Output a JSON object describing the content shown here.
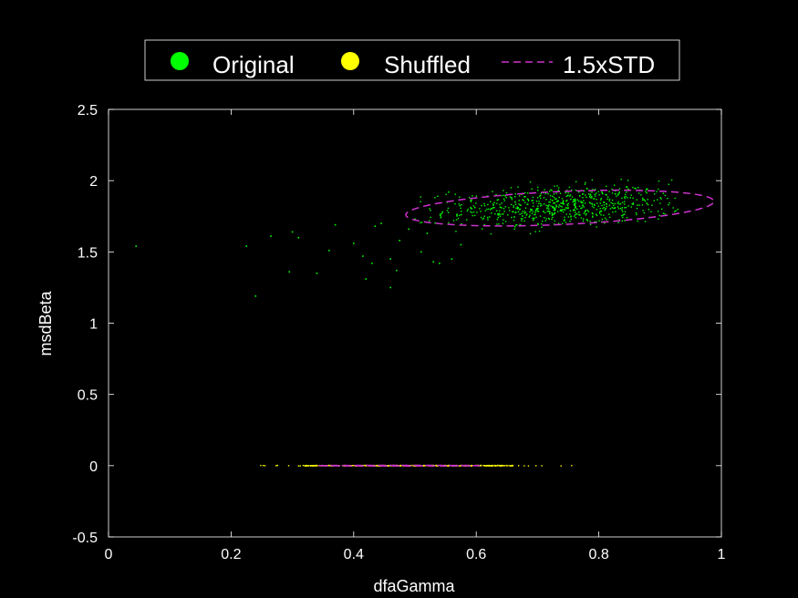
{
  "chart_data": {
    "type": "scatter",
    "xlabel": "dfaGamma",
    "ylabel": "msdBeta",
    "xlim": [
      0,
      1
    ],
    "ylim": [
      -0.5,
      2.5
    ],
    "xticks": [
      "0",
      "0.2",
      "0.4",
      "0.6",
      "0.8",
      "1"
    ],
    "yticks": [
      "-0.5",
      "0",
      "0.5",
      "1",
      "1.5",
      "2",
      "2.5"
    ],
    "grid": false,
    "background": "#000000",
    "legend": {
      "placement": "top",
      "entries": [
        {
          "label": "Original",
          "color": "#00ff00",
          "marker": "dot"
        },
        {
          "label": "Shuffled",
          "color": "#ffff00",
          "marker": "dot"
        },
        {
          "label": "1.5xSTD",
          "color": "#cc33cc",
          "marker": "dashed-line"
        }
      ]
    },
    "series": [
      {
        "name": "Original",
        "color": "#00ff00",
        "cluster": {
          "cx": 0.74,
          "cy": 1.82,
          "angle_deg": 13,
          "sd_major": 0.1,
          "sd_minor": 0.07,
          "count": 700
        },
        "outliers": [
          [
            0.045,
            1.54
          ],
          [
            0.225,
            1.54
          ],
          [
            0.24,
            1.19
          ],
          [
            0.265,
            1.61
          ],
          [
            0.295,
            1.36
          ],
          [
            0.3,
            1.64
          ],
          [
            0.31,
            1.6
          ],
          [
            0.34,
            1.35
          ],
          [
            0.36,
            1.51
          ],
          [
            0.37,
            1.69
          ],
          [
            0.4,
            1.56
          ],
          [
            0.415,
            1.47
          ],
          [
            0.42,
            1.31
          ],
          [
            0.43,
            1.42
          ],
          [
            0.435,
            1.68
          ],
          [
            0.445,
            1.7
          ],
          [
            0.46,
            1.25
          ],
          [
            0.46,
            1.45
          ],
          [
            0.47,
            1.37
          ],
          [
            0.475,
            1.58
          ],
          [
            0.49,
            1.66
          ],
          [
            0.5,
            1.73
          ],
          [
            0.51,
            1.5
          ],
          [
            0.52,
            1.63
          ],
          [
            0.53,
            1.43
          ],
          [
            0.54,
            1.42
          ],
          [
            0.545,
            1.78
          ],
          [
            0.555,
            1.92
          ],
          [
            0.56,
            1.45
          ],
          [
            0.575,
            1.55
          ]
        ]
      },
      {
        "name": "Shuffled",
        "color": "#ffff00",
        "y": 0,
        "x_range": [
          0.24,
          0.76
        ],
        "x_core_range": [
          0.32,
          0.66
        ],
        "count": 400
      }
    ],
    "ellipses": [
      {
        "series": "Original",
        "label": "1.5xSTD",
        "color": "#cc33cc",
        "cx": 0.7364,
        "cy": 1.8075,
        "angle_deg": 13.3,
        "semi_major": 0.2568,
        "semi_minor": 0.1135
      },
      {
        "series": "Shuffled",
        "label": "1.5xSTD",
        "color": "#cc33cc",
        "cx": 0.4735,
        "cy": 0.0,
        "angle_deg": 0,
        "semi_major": 0.1325,
        "semi_minor": 0.002
      }
    ]
  }
}
